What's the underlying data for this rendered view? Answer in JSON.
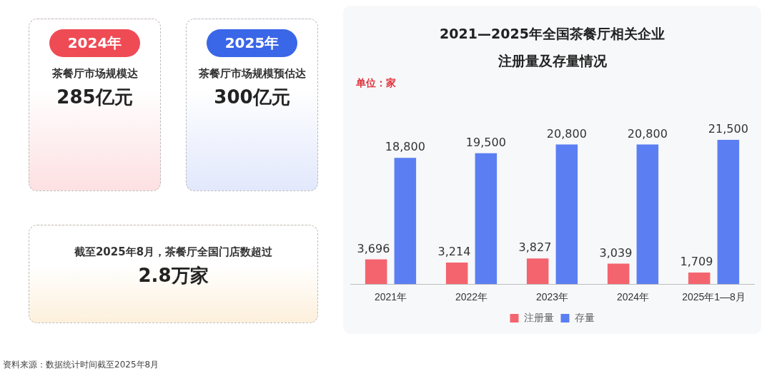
{
  "chart_data": [
    {
      "type": "other",
      "annotations": [
        "2024年",
        "茶餐厅市场规模达",
        "285亿元",
        "2025年",
        "茶餐厅市场规模预估达",
        "300亿元",
        "截至2025年8月，茶餐厅全国门店数超过",
        "2.8万家"
      ]
    },
    {
      "type": "bar",
      "title": "2021—2025年全国茶餐厅相关企业注册量及存量情况",
      "subtitle": "单位：家",
      "categories": [
        "2021年",
        "2022年",
        "2023年",
        "2024年",
        "2025年1—8月"
      ],
      "series": [
        {
          "name": "注册量",
          "color": "#f4646e",
          "values": [
            3696,
            3214,
            3827,
            3039,
            1709
          ],
          "value_labels": [
            "3,696",
            "3,214",
            "3,827",
            "3,039",
            "1,709"
          ]
        },
        {
          "name": "存量",
          "color": "#5b7ff2",
          "values": [
            18800,
            19500,
            20800,
            20800,
            21500
          ],
          "value_labels": [
            "18,800",
            "19,500",
            "20,800",
            "20,800",
            "21,500"
          ]
        }
      ],
      "legend": "bottom",
      "annotations": [
        "资料来源：数据统计时间截至2025年8月"
      ]
    }
  ]
}
